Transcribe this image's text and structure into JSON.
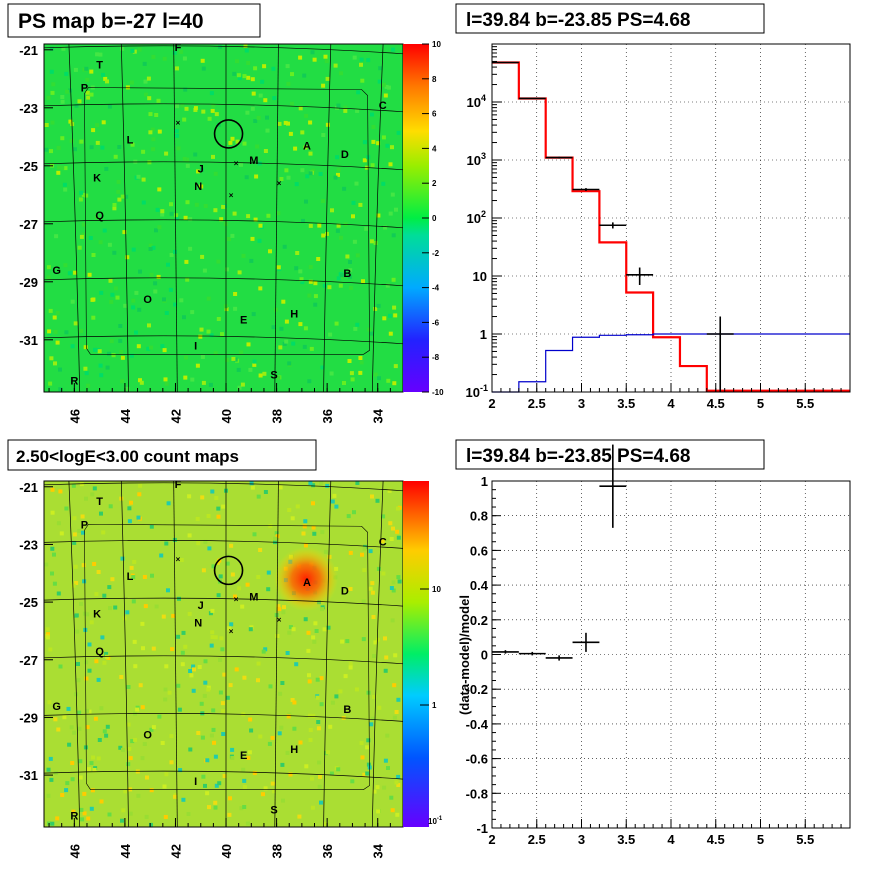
{
  "panels": {
    "tl_title": "PS map b=-27 l=40",
    "tr_title": "l=39.84 b=-23.85 PS=4.68",
    "bl_title": "2.50<logE<3.00 count maps",
    "br_title": "l=39.84 b=-23.85 PS=4.68"
  },
  "chart_data": [
    {
      "type": "heatmap",
      "panel": "top-left",
      "title": "PS map b=-27 l=40",
      "x_ticks": [
        "46",
        "44",
        "42",
        "40",
        "38",
        "36",
        "34"
      ],
      "y_ticks": [
        "-21",
        "-23",
        "-25",
        "-27",
        "-29",
        "-31"
      ],
      "xlim": [
        47.2,
        33.0
      ],
      "ylim": [
        -32.8,
        -20.8
      ],
      "colorbar_ticks": [
        "10",
        "8",
        "6",
        "4",
        "2",
        "0",
        "-2",
        "-4",
        "-6",
        "-8",
        "-10"
      ],
      "colorbar_range": [
        -10,
        10
      ],
      "background_level": 0.5,
      "sources": [
        {
          "label": "F",
          "l": 41.9,
          "b": -20.9
        },
        {
          "label": "T",
          "l": 45.0,
          "b": -21.5
        },
        {
          "label": "P",
          "l": 45.6,
          "b": -22.3
        },
        {
          "label": "C",
          "l": 33.8,
          "b": -22.9
        },
        {
          "label": "L",
          "l": 43.8,
          "b": -24.1
        },
        {
          "label": "A",
          "l": 36.8,
          "b": -24.3
        },
        {
          "label": "D",
          "l": 35.3,
          "b": -24.6
        },
        {
          "label": "M",
          "l": 38.9,
          "b": -24.8
        },
        {
          "label": "J",
          "l": 41.0,
          "b": -25.1
        },
        {
          "label": "K",
          "l": 45.1,
          "b": -25.4
        },
        {
          "label": "N",
          "l": 41.1,
          "b": -25.7
        },
        {
          "label": "Q",
          "l": 45.0,
          "b": -26.7
        },
        {
          "label": "G",
          "l": 46.7,
          "b": -28.6
        },
        {
          "label": "B",
          "l": 35.2,
          "b": -28.7
        },
        {
          "label": "O",
          "l": 43.1,
          "b": -29.6
        },
        {
          "label": "H",
          "l": 37.3,
          "b": -30.1
        },
        {
          "label": "E",
          "l": 39.3,
          "b": -30.3
        },
        {
          "label": "I",
          "l": 41.2,
          "b": -31.2
        },
        {
          "label": "S",
          "l": 38.1,
          "b": -32.2
        },
        {
          "label": "R",
          "l": 46.0,
          "b": -32.4
        }
      ],
      "crosses": [
        {
          "l": 41.9,
          "b": -23.5
        },
        {
          "l": 39.6,
          "b": -24.9
        },
        {
          "l": 37.9,
          "b": -25.6
        },
        {
          "l": 39.8,
          "b": -26.0
        }
      ],
      "circle": {
        "l": 39.9,
        "b": -23.9
      }
    },
    {
      "type": "line",
      "panel": "top-right",
      "title": "l=39.84 b=-23.85 PS=4.68",
      "xlim": [
        2,
        6
      ],
      "ylim": [
        0.1,
        100000
      ],
      "yscale": "log",
      "x_ticks": [
        "2",
        "2.5",
        "3",
        "3.5",
        "4",
        "4.5",
        "5",
        "5.5"
      ],
      "y_ticks": [
        "10^-1",
        "1",
        "10",
        "10^2",
        "10^3",
        "10^4"
      ],
      "series": [
        {
          "color": "#ff0000",
          "bin_edges": [
            2.0,
            2.3,
            2.6,
            2.9,
            3.2,
            3.5,
            3.8,
            4.1,
            4.4,
            4.7,
            6.0
          ],
          "values": [
            48000,
            11500,
            1100,
            290,
            38,
            5.2,
            0.88,
            0.28,
            0.105,
            0.105
          ]
        },
        {
          "color": "#0000cc",
          "bin_edges": [
            2.0,
            2.3,
            2.6,
            2.9,
            3.2,
            3.5,
            3.8,
            4.1,
            4.4,
            4.7,
            6.0
          ],
          "values": [
            0.1,
            0.15,
            0.52,
            0.88,
            0.95,
            0.97,
            1.0,
            1.0,
            1.0,
            1.0
          ]
        },
        {
          "color": "#000000",
          "points": [
            {
              "x": 2.15,
              "y": 48000,
              "xerr": 0.15,
              "ylo": 47500,
              "yhi": 48500
            },
            {
              "x": 2.45,
              "y": 11500,
              "xerr": 0.15,
              "ylo": 11300,
              "yhi": 11700
            },
            {
              "x": 2.75,
              "y": 1100,
              "xerr": 0.15,
              "ylo": 1060,
              "yhi": 1140
            },
            {
              "x": 3.05,
              "y": 310,
              "xerr": 0.15,
              "ylo": 292,
              "yhi": 328
            },
            {
              "x": 3.35,
              "y": 75,
              "xerr": 0.15,
              "ylo": 66,
              "yhi": 84
            },
            {
              "x": 3.65,
              "y": 10.5,
              "xerr": 0.15,
              "ylo": 7.0,
              "yhi": 14.0
            },
            {
              "x": 4.55,
              "y": 1.0,
              "xerr": 0.15,
              "ylo": 0.1,
              "yhi": 2.0
            }
          ]
        }
      ]
    },
    {
      "type": "heatmap",
      "panel": "bottom-left",
      "title": "2.50<logE<3.00 count maps",
      "x_ticks": [
        "46",
        "44",
        "42",
        "40",
        "38",
        "36",
        "34"
      ],
      "y_ticks": [
        "-21",
        "-23",
        "-25",
        "-27",
        "-29",
        "-31"
      ],
      "xlim": [
        47.2,
        33.0
      ],
      "ylim": [
        -32.8,
        -20.8
      ],
      "colorbar_ticks": [
        "10",
        "1",
        "10^-1"
      ],
      "colorbar_scale": "log",
      "bright_spot": {
        "l": 36.7,
        "b": -24.3
      }
    },
    {
      "type": "scatter",
      "panel": "bottom-right",
      "title": "l=39.84 b=-23.85 PS=4.68",
      "ylabel": "(data-model)/model",
      "xlim": [
        2,
        6
      ],
      "ylim": [
        -1,
        1
      ],
      "x_ticks": [
        "2",
        "2.5",
        "3",
        "3.5",
        "4",
        "4.5",
        "5",
        "5.5"
      ],
      "y_ticks": [
        "1",
        "0.8",
        "0.6",
        "0.4",
        "0.2",
        "0",
        "-0.2",
        "-0.4",
        "-0.6",
        "-0.8",
        "-1"
      ],
      "points": [
        {
          "x": 2.15,
          "y": 0.015,
          "xerr": 0.15,
          "yerr": 0.01
        },
        {
          "x": 2.45,
          "y": 0.005,
          "xerr": 0.15,
          "yerr": 0.01
        },
        {
          "x": 2.75,
          "y": -0.02,
          "xerr": 0.15,
          "yerr": 0.015
        },
        {
          "x": 3.05,
          "y": 0.07,
          "xerr": 0.15,
          "yerr": 0.055
        },
        {
          "x": 3.35,
          "y": 0.97,
          "xerr": 0.15,
          "yerr": 0.24
        }
      ]
    }
  ]
}
